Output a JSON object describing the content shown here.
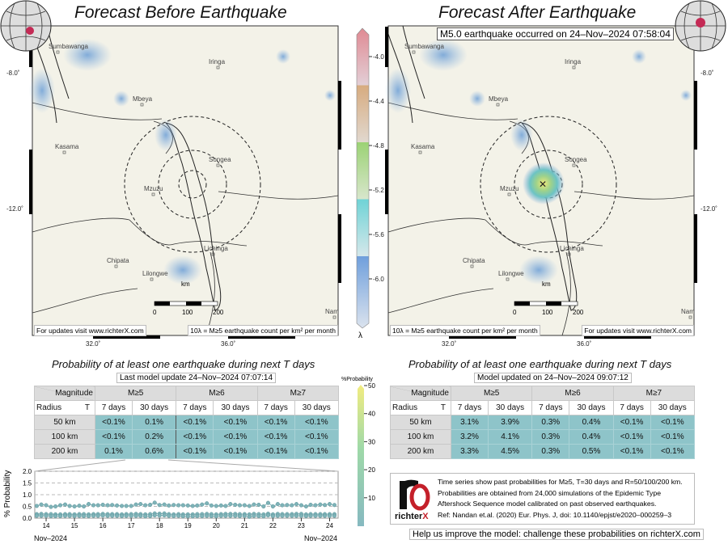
{
  "left": {
    "title": "Forecast Before Earthquake",
    "table_title": "Probability of at least one earthquake during next T days",
    "update": "Last model update 24–Nov–2024 07:07:14",
    "footer_left": "For updates visit www.richterX.com",
    "footer_right": "10λ = M≥5 earthquake count per km² per month"
  },
  "right": {
    "title": "Forecast After Earthquake",
    "event": "M5.0 earthquake occurred on 24–Nov–2024 07:58:04",
    "table_title": "Probability of at least one earthquake during next T days",
    "update": "Model updated on 24–Nov–2024 09:07:12",
    "footer_left": "10λ = M≥5 earthquake count per km² per month",
    "footer_right": "For updates visit www.richterX.com"
  },
  "map": {
    "lat_labels": [
      "-8.0˚",
      "-12.0˚"
    ],
    "lon_labels": [
      "32.0˚",
      "36.0˚"
    ],
    "cities": [
      "Sumbawanga",
      "Iringa",
      "Mbeya",
      "Kasama",
      "Songea",
      "Mzuzu",
      "Chipata",
      "Lilongwe",
      "Lichinga",
      "Nam"
    ],
    "scale": {
      "ticks": [
        "0",
        "100",
        "200"
      ],
      "unit": "km"
    }
  },
  "lambda_colorbar": {
    "ticks": [
      "-4.0",
      "-4.4",
      "-4.8",
      "-5.2",
      "-5.6",
      "-6.0"
    ],
    "label": "λ",
    "range": [
      -6.4,
      -3.8
    ]
  },
  "prob_colorbar": {
    "title": "%Probability",
    "ticks": [
      "50",
      "40",
      "30",
      "20",
      "10"
    ],
    "range": [
      0,
      50
    ]
  },
  "table": {
    "mag_label": "Magnitude",
    "radius_label": "Radius",
    "t_label": "T",
    "mags": [
      "M≥5",
      "M≥6",
      "M≥7"
    ],
    "periods": [
      "7 days",
      "30 days",
      "7 days",
      "30 days",
      "7 days",
      "30 days"
    ],
    "radii": [
      "50 km",
      "100 km",
      "200 km"
    ]
  },
  "table_before": [
    [
      "<0.1%",
      "0.1%",
      "<0.1%",
      "<0.1%",
      "<0.1%",
      "<0.1%"
    ],
    [
      "<0.1%",
      "0.2%",
      "<0.1%",
      "<0.1%",
      "<0.1%",
      "<0.1%"
    ],
    [
      "0.1%",
      "0.6%",
      "<0.1%",
      "<0.1%",
      "<0.1%",
      "<0.1%"
    ]
  ],
  "table_after": [
    [
      "3.1%",
      "3.9%",
      "0.3%",
      "0.4%",
      "<0.1%",
      "<0.1%"
    ],
    [
      "3.2%",
      "4.1%",
      "0.3%",
      "0.4%",
      "<0.1%",
      "<0.1%"
    ],
    [
      "3.3%",
      "4.5%",
      "0.3%",
      "0.5%",
      "<0.1%",
      "<0.1%"
    ]
  ],
  "info": {
    "lines": [
      "Time series show past probabilities for M≥5, T=30 days and R=50/100/200 km.",
      "Probabilities are obtained from 24,000 simulations of the Epidemic Type",
      "Aftershock Sequence model calibrated on past observed earthquakes.",
      "Ref: Nandan et.al. (2020) Eur. Phys. J, doi: 10.1140/epjst/e2020–000259–3"
    ],
    "logo": "richterX",
    "help": "Help us improve the model: challenge these probabilities on richterX.com"
  },
  "colors": {
    "cell": "#8ec4c9",
    "series": "#7fb3b8",
    "header": "#dcdcdc"
  },
  "chart_data": {
    "type": "line",
    "ylabel": "% Probability",
    "ylim": [
      0,
      2
    ],
    "yticks": [
      "0.0",
      "0.5",
      "1.0",
      "1.5",
      "2.0"
    ],
    "xticks": [
      "14",
      "15",
      "16",
      "17",
      "18",
      "19",
      "20",
      "21",
      "22",
      "23",
      "24"
    ],
    "xlim": [
      13.6,
      24.3
    ],
    "x_left_label": "Nov–2024",
    "x_right_label": "Nov–2024",
    "grid": "horizontal dashed",
    "x": [
      13.67,
      13.83,
      14,
      14.17,
      14.33,
      14.5,
      14.67,
      14.83,
      15,
      15.17,
      15.33,
      15.5,
      15.67,
      15.83,
      16,
      16.17,
      16.33,
      16.5,
      16.67,
      16.83,
      17,
      17.17,
      17.33,
      17.5,
      17.67,
      17.83,
      18,
      18.17,
      18.33,
      18.5,
      18.67,
      18.83,
      19,
      19.17,
      19.33,
      19.5,
      19.67,
      19.83,
      20,
      20.17,
      20.33,
      20.5,
      20.67,
      20.83,
      21,
      21.17,
      21.33,
      21.5,
      21.67,
      21.83,
      22,
      22.17,
      22.33,
      22.5,
      22.67,
      22.83,
      23,
      23.17,
      23.33,
      23.5,
      23.67,
      23.83,
      24,
      24.17
    ],
    "series": [
      {
        "values": [
          0.52,
          0.58,
          0.55,
          0.48,
          0.5,
          0.55,
          0.58,
          0.52,
          0.5,
          0.53,
          0.5,
          0.6,
          0.55,
          0.55,
          0.57,
          0.55,
          0.56,
          0.54,
          0.52,
          0.52,
          0.52,
          0.58,
          0.6,
          0.55,
          0.57,
          0.66,
          0.56,
          0.58,
          0.54,
          0.56,
          0.55,
          0.55,
          0.54,
          0.52,
          0.54,
          0.58,
          0.63,
          0.54,
          0.52,
          0.54,
          0.52,
          0.6,
          0.57,
          0.55,
          0.55,
          0.52,
          0.58,
          0.57,
          0.5,
          0.65,
          0.5,
          0.6,
          0.55,
          0.56,
          0.55,
          0.6,
          0.55,
          0.5,
          0.57,
          0.55,
          0.58,
          0.56,
          0.6,
          0.56
        ]
      },
      {
        "values": [
          0.17,
          0.18,
          0.17,
          0.17,
          0.16,
          0.16,
          0.17,
          0.17,
          0.16,
          0.17,
          0.17,
          0.16,
          0.17,
          0.17,
          0.18,
          0.17,
          0.17,
          0.17,
          0.16,
          0.17,
          0.17,
          0.18,
          0.17,
          0.16,
          0.17,
          0.2,
          0.19,
          0.2,
          0.17,
          0.16,
          0.17,
          0.16,
          0.16,
          0.16,
          0.17,
          0.17,
          0.18,
          0.17,
          0.16,
          0.17,
          0.18,
          0.18,
          0.18,
          0.17,
          0.17,
          0.16,
          0.18,
          0.17,
          0.16,
          0.19,
          0.16,
          0.18,
          0.17,
          0.17,
          0.17,
          0.18,
          0.18,
          0.16,
          0.17,
          0.17,
          0.17,
          0.17,
          0.17,
          0.17
        ]
      },
      {
        "values": [
          0.1,
          0.1,
          0.1,
          0.09,
          0.09,
          0.09,
          0.1,
          0.1,
          0.09,
          0.1,
          0.09,
          0.09,
          0.1,
          0.1,
          0.11,
          0.1,
          0.1,
          0.1,
          0.09,
          0.1,
          0.1,
          0.1,
          0.1,
          0.08,
          0.09,
          0.12,
          0.11,
          0.12,
          0.1,
          0.09,
          0.1,
          0.08,
          0.08,
          0.08,
          0.09,
          0.09,
          0.1,
          0.09,
          0.08,
          0.1,
          0.1,
          0.1,
          0.1,
          0.09,
          0.1,
          0.06,
          0.1,
          0.09,
          0.08,
          0.12,
          0.09,
          0.1,
          0.1,
          0.1,
          0.1,
          0.1,
          0.1,
          0.09,
          0.1,
          0.1,
          0.1,
          0.1,
          0.1,
          0.1
        ]
      }
    ]
  }
}
